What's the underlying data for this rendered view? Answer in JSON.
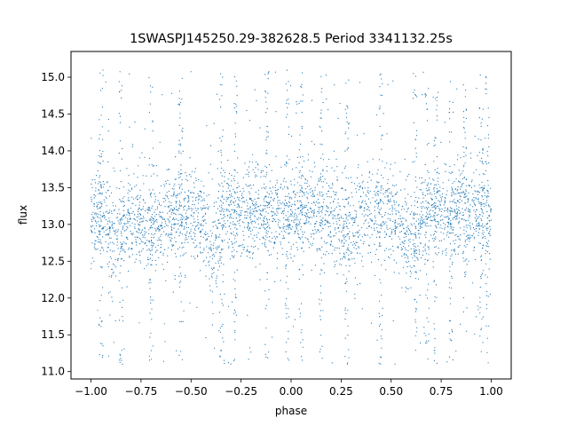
{
  "chart_data": {
    "type": "scatter",
    "title": "1SWASPJ145250.29-382628.5 Period 3341132.25s",
    "xlabel": "phase",
    "ylabel": "flux",
    "xlim": [
      -1.1,
      1.1
    ],
    "ylim": [
      10.9,
      15.35
    ],
    "x_ticks": [
      -1.0,
      -0.75,
      -0.5,
      -0.25,
      0.0,
      0.25,
      0.5,
      0.75,
      1.0
    ],
    "x_tick_labels": [
      "−1.00",
      "−0.75",
      "−0.50",
      "−0.25",
      "0.00",
      "0.25",
      "0.50",
      "0.75",
      "1.00"
    ],
    "y_ticks": [
      11.0,
      11.5,
      12.0,
      12.5,
      13.0,
      13.5,
      14.0,
      14.5,
      15.0
    ],
    "y_tick_labels": [
      "11.0",
      "11.5",
      "12.0",
      "12.5",
      "13.0",
      "13.5",
      "14.0",
      "14.5",
      "15.0"
    ],
    "grid": false,
    "legend": "none",
    "marker_color": "#1f77b4",
    "x_range": [
      -1.0,
      1.0
    ],
    "typical_flux": 13.15,
    "flux_spread": 0.3,
    "flux_min": 11.1,
    "flux_max": 15.1,
    "vertical_streak_phases": [
      -0.95,
      -0.85,
      -0.7,
      -0.55,
      -0.35,
      -0.28,
      -0.12,
      -0.02,
      0.05,
      0.15,
      0.28,
      0.45,
      0.62,
      0.68,
      0.72,
      0.8,
      0.87,
      0.95,
      0.98
    ],
    "dips": [
      {
        "phase": -0.88,
        "flux": 12.5
      },
      {
        "phase": -0.7,
        "flux": 12.6
      },
      {
        "phase": -0.4,
        "flux": 12.4
      },
      {
        "phase": 0.28,
        "flux": 12.6
      },
      {
        "phase": 0.6,
        "flux": 12.4
      }
    ]
  }
}
